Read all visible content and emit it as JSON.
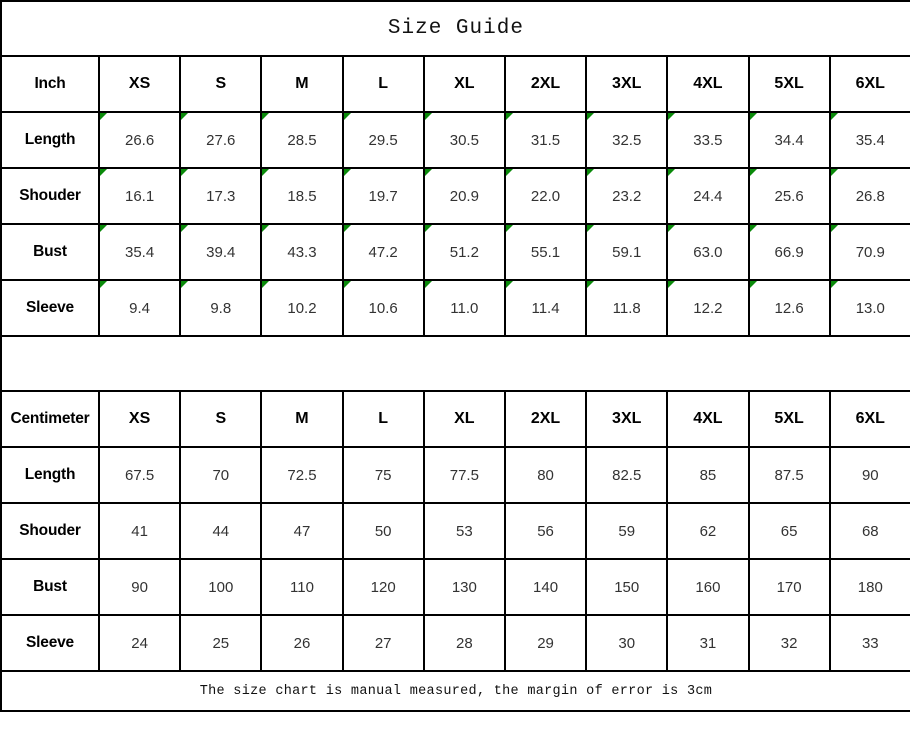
{
  "title": "Size Guide",
  "footer_note": "The size chart is manual measured, the margin of error is 3cm",
  "colors": {
    "grid_border": "#000000",
    "flag_green": "#0a8a0a",
    "value_text": "#333333",
    "label_text": "#000000"
  },
  "icons": {
    "green_triangle_flag": "top-left cell corner triangle, color #0a8a0a, inch table numeric cells only"
  },
  "inch_table": {
    "unit_label": "Inch",
    "sizes": [
      "XS",
      "S",
      "M",
      "L",
      "XL",
      "2XL",
      "3XL",
      "4XL",
      "5XL",
      "6XL"
    ],
    "rows": [
      {
        "label": "Length",
        "values": [
          "26.6",
          "27.6",
          "28.5",
          "29.5",
          "30.5",
          "31.5",
          "32.5",
          "33.5",
          "34.4",
          "35.4"
        ]
      },
      {
        "label": "Shouder",
        "values": [
          "16.1",
          "17.3",
          "18.5",
          "19.7",
          "20.9",
          "22.0",
          "23.2",
          "24.4",
          "25.6",
          "26.8"
        ]
      },
      {
        "label": "Bust",
        "values": [
          "35.4",
          "39.4",
          "43.3",
          "47.2",
          "51.2",
          "55.1",
          "59.1",
          "63.0",
          "66.9",
          "70.9"
        ]
      },
      {
        "label": "Sleeve",
        "values": [
          "9.4",
          "9.8",
          "10.2",
          "10.6",
          "11.0",
          "11.4",
          "11.8",
          "12.2",
          "12.6",
          "13.0"
        ]
      }
    ]
  },
  "cm_table": {
    "unit_label": "Centimeter",
    "sizes": [
      "XS",
      "S",
      "M",
      "L",
      "XL",
      "2XL",
      "3XL",
      "4XL",
      "5XL",
      "6XL"
    ],
    "rows": [
      {
        "label": "Length",
        "values": [
          "67.5",
          "70",
          "72.5",
          "75",
          "77.5",
          "80",
          "82.5",
          "85",
          "87.5",
          "90"
        ]
      },
      {
        "label": "Shouder",
        "values": [
          "41",
          "44",
          "47",
          "50",
          "53",
          "56",
          "59",
          "62",
          "65",
          "68"
        ]
      },
      {
        "label": "Bust",
        "values": [
          "90",
          "100",
          "110",
          "120",
          "130",
          "140",
          "150",
          "160",
          "170",
          "180"
        ]
      },
      {
        "label": "Sleeve",
        "values": [
          "24",
          "25",
          "26",
          "27",
          "28",
          "29",
          "30",
          "31",
          "32",
          "33"
        ]
      }
    ]
  },
  "chart_data": [
    {
      "type": "table",
      "title": "Size Guide (Inch)",
      "columns": [
        "Inch",
        "XS",
        "S",
        "M",
        "L",
        "XL",
        "2XL",
        "3XL",
        "4XL",
        "5XL",
        "6XL"
      ],
      "rows": [
        [
          "Length",
          26.6,
          27.6,
          28.5,
          29.5,
          30.5,
          31.5,
          32.5,
          33.5,
          34.4,
          35.4
        ],
        [
          "Shouder",
          16.1,
          17.3,
          18.5,
          19.7,
          20.9,
          22.0,
          23.2,
          24.4,
          25.6,
          26.8
        ],
        [
          "Bust",
          35.4,
          39.4,
          43.3,
          47.2,
          51.2,
          55.1,
          59.1,
          63.0,
          66.9,
          70.9
        ],
        [
          "Sleeve",
          9.4,
          9.8,
          10.2,
          10.6,
          11.0,
          11.4,
          11.8,
          12.2,
          12.6,
          13.0
        ]
      ]
    },
    {
      "type": "table",
      "title": "Size Guide (Centimeter)",
      "columns": [
        "Centimeter",
        "XS",
        "S",
        "M",
        "L",
        "XL",
        "2XL",
        "3XL",
        "4XL",
        "5XL",
        "6XL"
      ],
      "rows": [
        [
          "Length",
          67.5,
          70,
          72.5,
          75,
          77.5,
          80,
          82.5,
          85,
          87.5,
          90
        ],
        [
          "Shouder",
          41,
          44,
          47,
          50,
          53,
          56,
          59,
          62,
          65,
          68
        ],
        [
          "Bust",
          90,
          100,
          110,
          120,
          130,
          140,
          150,
          160,
          170,
          180
        ],
        [
          "Sleeve",
          24,
          25,
          26,
          27,
          28,
          29,
          30,
          31,
          32,
          33
        ]
      ],
      "footnote": "The size chart is manual measured, the margin of error is 3cm"
    }
  ]
}
